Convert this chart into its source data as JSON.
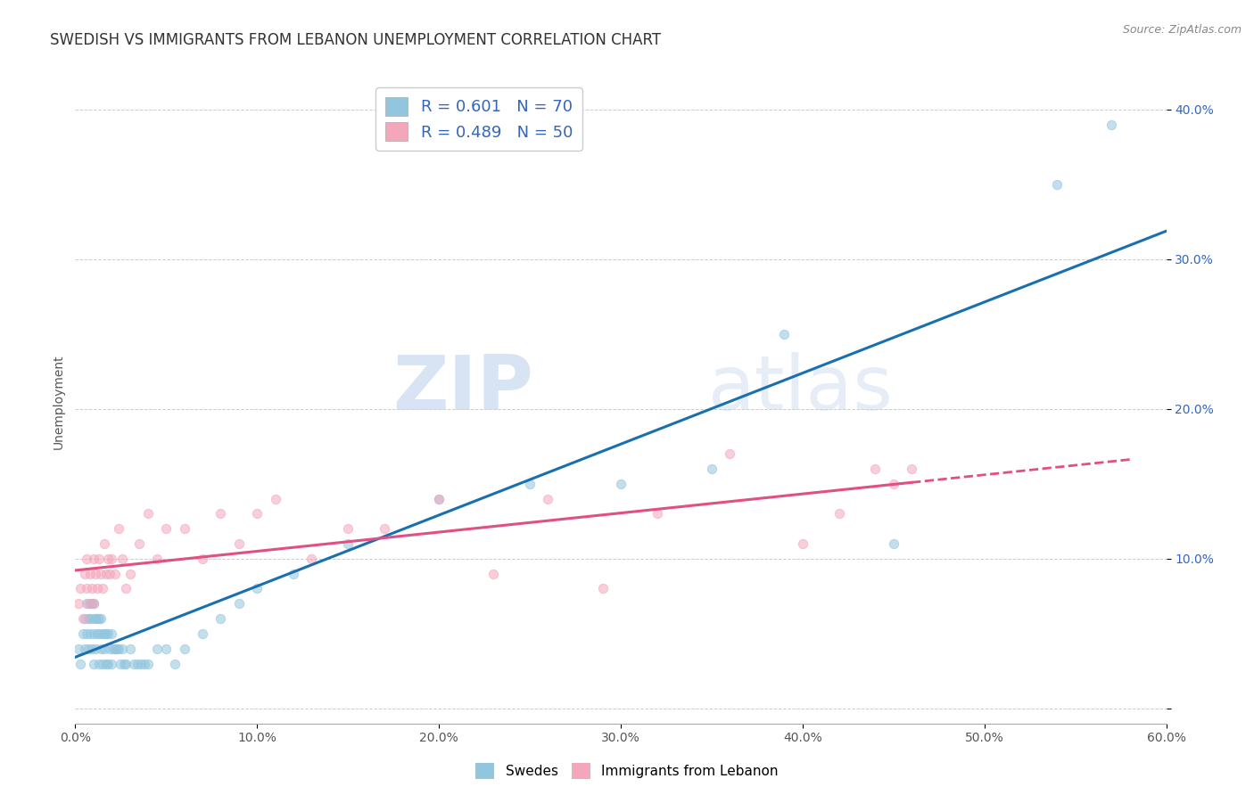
{
  "title": "SWEDISH VS IMMIGRANTS FROM LEBANON UNEMPLOYMENT CORRELATION CHART",
  "source": "Source: ZipAtlas.com",
  "xlabel": "",
  "ylabel": "Unemployment",
  "xlim": [
    0.0,
    0.6
  ],
  "ylim": [
    -0.01,
    0.42
  ],
  "xticks": [
    0.0,
    0.1,
    0.2,
    0.3,
    0.4,
    0.5,
    0.6
  ],
  "yticks": [
    0.0,
    0.1,
    0.2,
    0.3,
    0.4
  ],
  "xtick_labels": [
    "0.0%",
    "10.0%",
    "20.0%",
    "30.0%",
    "40.0%",
    "50.0%",
    "60.0%"
  ],
  "ytick_labels": [
    "",
    "10.0%",
    "20.0%",
    "30.0%",
    "40.0%"
  ],
  "swedes_color": "#92c5de",
  "lebanon_color": "#f4a6bb",
  "trendline_swedes_color": "#1a6faf",
  "trendline_lebanon_color": "#e05080",
  "swedes_x": [
    0.002,
    0.003,
    0.004,
    0.005,
    0.005,
    0.006,
    0.006,
    0.007,
    0.007,
    0.008,
    0.008,
    0.008,
    0.009,
    0.009,
    0.01,
    0.01,
    0.01,
    0.01,
    0.011,
    0.011,
    0.012,
    0.012,
    0.013,
    0.013,
    0.013,
    0.014,
    0.014,
    0.015,
    0.015,
    0.016,
    0.016,
    0.017,
    0.017,
    0.018,
    0.018,
    0.019,
    0.02,
    0.02,
    0.021,
    0.022,
    0.023,
    0.024,
    0.025,
    0.026,
    0.027,
    0.028,
    0.03,
    0.032,
    0.034,
    0.036,
    0.038,
    0.04,
    0.045,
    0.05,
    0.055,
    0.06,
    0.07,
    0.08,
    0.09,
    0.1,
    0.12,
    0.15,
    0.2,
    0.25,
    0.3,
    0.35,
    0.39,
    0.45,
    0.54,
    0.57
  ],
  "swedes_y": [
    0.04,
    0.03,
    0.05,
    0.06,
    0.04,
    0.07,
    0.05,
    0.06,
    0.04,
    0.07,
    0.06,
    0.05,
    0.07,
    0.04,
    0.07,
    0.06,
    0.05,
    0.03,
    0.06,
    0.04,
    0.06,
    0.05,
    0.06,
    0.05,
    0.03,
    0.06,
    0.04,
    0.05,
    0.03,
    0.05,
    0.04,
    0.05,
    0.03,
    0.05,
    0.03,
    0.04,
    0.05,
    0.03,
    0.04,
    0.04,
    0.04,
    0.04,
    0.03,
    0.04,
    0.03,
    0.03,
    0.04,
    0.03,
    0.03,
    0.03,
    0.03,
    0.03,
    0.04,
    0.04,
    0.03,
    0.04,
    0.05,
    0.06,
    0.07,
    0.08,
    0.09,
    0.11,
    0.14,
    0.15,
    0.15,
    0.16,
    0.25,
    0.11,
    0.35,
    0.39
  ],
  "lebanon_x": [
    0.002,
    0.003,
    0.004,
    0.005,
    0.006,
    0.006,
    0.007,
    0.008,
    0.009,
    0.01,
    0.01,
    0.011,
    0.012,
    0.013,
    0.014,
    0.015,
    0.016,
    0.017,
    0.018,
    0.019,
    0.02,
    0.022,
    0.024,
    0.026,
    0.028,
    0.03,
    0.035,
    0.04,
    0.045,
    0.05,
    0.06,
    0.07,
    0.08,
    0.09,
    0.1,
    0.11,
    0.13,
    0.15,
    0.17,
    0.2,
    0.23,
    0.26,
    0.29,
    0.32,
    0.36,
    0.4,
    0.42,
    0.44,
    0.45,
    0.46
  ],
  "lebanon_y": [
    0.07,
    0.08,
    0.06,
    0.09,
    0.08,
    0.1,
    0.07,
    0.09,
    0.08,
    0.1,
    0.07,
    0.09,
    0.08,
    0.1,
    0.09,
    0.08,
    0.11,
    0.09,
    0.1,
    0.09,
    0.1,
    0.09,
    0.12,
    0.1,
    0.08,
    0.09,
    0.11,
    0.13,
    0.1,
    0.12,
    0.12,
    0.1,
    0.13,
    0.11,
    0.13,
    0.14,
    0.1,
    0.12,
    0.12,
    0.14,
    0.09,
    0.14,
    0.08,
    0.13,
    0.17,
    0.11,
    0.13,
    0.16,
    0.15,
    0.16
  ],
  "background_color": "#ffffff",
  "grid_color": "#cccccc",
  "legend_label_swedes": "R = 0.601   N = 70",
  "legend_label_lebanon": "R = 0.489   N = 50",
  "watermark_zip": "ZIP",
  "watermark_atlas": "atlas",
  "marker_size": 55,
  "marker_alpha": 0.55,
  "title_fontsize": 12,
  "axis_fontsize": 10,
  "tick_fontsize": 10
}
